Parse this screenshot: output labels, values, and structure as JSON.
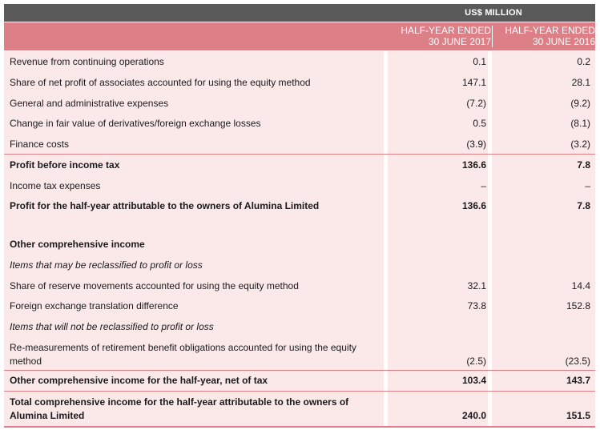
{
  "header": {
    "unit": "US$ MILLION",
    "col1_line1": "HALF-YEAR ENDED",
    "col1_line2": "30 JUNE 2017",
    "col2_line1": "HALF-YEAR ENDED",
    "col2_line2": "30 JUNE 2016"
  },
  "rows": [
    {
      "label": "Revenue from continuing operations",
      "v2017": "0.1",
      "v2016": "0.2"
    },
    {
      "label": "Share of net profit of associates accounted for using the equity method",
      "v2017": "147.1",
      "v2016": "28.1"
    },
    {
      "label": "General and administrative expenses",
      "v2017": "(7.2)",
      "v2016": "(9.2)"
    },
    {
      "label": "Change in fair value of derivatives/foreign exchange losses",
      "v2017": "0.5",
      "v2016": "(8.1)"
    },
    {
      "label": "Finance costs",
      "v2017": "(3.9)",
      "v2016": "(3.2)"
    },
    {
      "label": "Profit before income tax",
      "v2017": "136.6",
      "v2016": "7.8"
    },
    {
      "label": "Income tax expenses",
      "v2017": "–",
      "v2016": "–"
    },
    {
      "label": "Profit for the half-year attributable to the owners of Alumina Limited",
      "v2017": "136.6",
      "v2016": "7.8"
    },
    {
      "label": "Other comprehensive income",
      "v2017": "",
      "v2016": ""
    },
    {
      "label": "Items that may be reclassified to profit or loss",
      "v2017": "",
      "v2016": ""
    },
    {
      "label": "Share of reserve movements accounted for using the equity method",
      "v2017": "32.1",
      "v2016": "14.4"
    },
    {
      "label": "Foreign exchange translation difference",
      "v2017": "73.8",
      "v2016": "152.8"
    },
    {
      "label": "Items that will not be reclassified to profit or loss",
      "v2017": "",
      "v2016": ""
    },
    {
      "label": "Re-measurements of retirement benefit obligations accounted for using the equity",
      "label2": "method",
      "v2017": "(2.5)",
      "v2016": "(23.5)"
    },
    {
      "label": "Other comprehensive income for the half-year, net of tax",
      "v2017": "103.4",
      "v2016": "143.7"
    },
    {
      "label": "Total comprehensive income for the half-year attributable to the owners of",
      "label2": "Alumina Limited",
      "v2017": "240.0",
      "v2016": "151.5"
    }
  ],
  "colors": {
    "header_band": "#5a5a5a",
    "accent": "#dc7f86",
    "body_fill": "#fbe9ea"
  }
}
